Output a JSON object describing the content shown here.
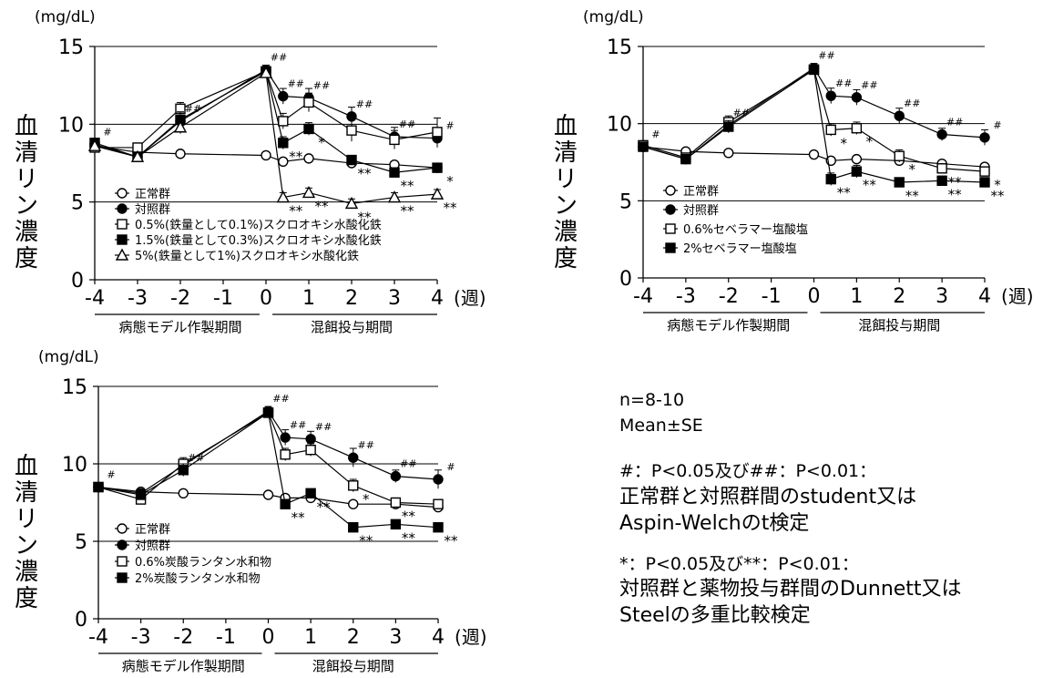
{
  "chart_data": [
    {
      "type": "line",
      "unit_label": "(mg/dL)",
      "ylabel": "血清リン濃度",
      "xunit": "(週)",
      "ylim": [
        0,
        15
      ],
      "yticks": [
        0,
        5,
        10,
        15
      ],
      "xticks": [
        -4,
        -3,
        -2,
        -1,
        0,
        1,
        2,
        3,
        4
      ],
      "period_labels": [
        "病態モデル作製期間",
        "混餌投与期間"
      ],
      "series": [
        {
          "name": "正常群",
          "marker": "open-circle",
          "x": [
            -4,
            -3,
            -2,
            0,
            0.4,
            1,
            2,
            3,
            4
          ],
          "y": [
            8.6,
            8.2,
            8.1,
            8.0,
            7.6,
            7.8,
            7.5,
            7.4,
            7.2
          ],
          "err": [
            0.2,
            0.2,
            0.15,
            0.15,
            0.2,
            0.2,
            0.2,
            0.2,
            0.2
          ]
        },
        {
          "name": "対照群",
          "marker": "filled-circle",
          "x": [
            -4,
            -3,
            -2,
            0,
            0.4,
            1,
            2,
            3,
            4
          ],
          "y": [
            8.7,
            7.9,
            10.2,
            13.5,
            11.8,
            11.7,
            10.5,
            9.2,
            9.1
          ],
          "err": [
            0.3,
            0.2,
            0.5,
            0.3,
            0.5,
            0.6,
            0.6,
            0.6,
            0.6
          ]
        },
        {
          "name": "0.5%(鉄量として0.1%)スクロオキシ水酸化鉄",
          "marker": "open-square",
          "x": [
            -4,
            -3,
            -2,
            0,
            0.4,
            1,
            2,
            3,
            4
          ],
          "y": [
            8.5,
            8.5,
            11.0,
            13.4,
            10.2,
            11.4,
            9.6,
            9.0,
            9.5
          ],
          "err": [
            0.2,
            0.2,
            0.4,
            0.3,
            0.5,
            0.6,
            0.7,
            0.6,
            0.9
          ]
        },
        {
          "name": "1.5%(鉄量として0.3%)スクロオキシ水酸化鉄",
          "marker": "filled-square",
          "x": [
            -4,
            -3,
            -2,
            0,
            0.4,
            1,
            2,
            3,
            4
          ],
          "y": [
            8.8,
            7.9,
            10.3,
            13.4,
            8.8,
            9.7,
            7.7,
            6.9,
            7.2
          ],
          "err": [
            0.3,
            0.2,
            0.5,
            0.3,
            0.4,
            0.4,
            0.3,
            0.3,
            0.3
          ]
        },
        {
          "name": "5%(鉄量として1%)スクロオキシ水酸化鉄",
          "marker": "open-triangle",
          "x": [
            -4,
            -3,
            -2,
            0,
            0.4,
            1,
            2,
            3,
            4
          ],
          "y": [
            8.6,
            7.9,
            9.8,
            13.3,
            5.3,
            5.6,
            4.9,
            5.3,
            5.5
          ],
          "err": [
            0.2,
            0.2,
            0.4,
            0.3,
            0.3,
            0.3,
            0.3,
            0.3,
            0.3
          ]
        }
      ],
      "annotations": [
        {
          "x": -4,
          "y": 8.7,
          "text": "#"
        },
        {
          "x": -2,
          "y": 10.2,
          "text": "##"
        },
        {
          "x": 0,
          "y": 13.5,
          "text": "##"
        },
        {
          "x": 0.4,
          "y": 11.8,
          "text": "##"
        },
        {
          "x": 1,
          "y": 11.7,
          "text": "##"
        },
        {
          "x": 2,
          "y": 10.5,
          "text": "##"
        },
        {
          "x": 3,
          "y": 9.2,
          "text": "##"
        },
        {
          "x": 4,
          "y": 9.1,
          "text": "#"
        },
        {
          "x": 0.4,
          "y": 8.8,
          "text": "**"
        },
        {
          "x": 1,
          "y": 9.7,
          "text": "*"
        },
        {
          "x": 2,
          "y": 7.7,
          "text": "**"
        },
        {
          "x": 3,
          "y": 6.9,
          "text": "**"
        },
        {
          "x": 4,
          "y": 7.2,
          "text": "*"
        },
        {
          "x": 0.4,
          "y": 5.3,
          "text": "**"
        },
        {
          "x": 1,
          "y": 5.6,
          "text": "**"
        },
        {
          "x": 2,
          "y": 4.9,
          "text": "**"
        },
        {
          "x": 3,
          "y": 5.3,
          "text": "**"
        },
        {
          "x": 4,
          "y": 5.5,
          "text": "**"
        }
      ]
    },
    {
      "type": "line",
      "unit_label": "(mg/dL)",
      "ylabel": "血清リン濃度",
      "xunit": "(週)",
      "ylim": [
        0,
        15
      ],
      "yticks": [
        0,
        5,
        10,
        15
      ],
      "xticks": [
        -4,
        -3,
        -2,
        -1,
        0,
        1,
        2,
        3,
        4
      ],
      "period_labels": [
        "病態モデル作製期間",
        "混餌投与期間"
      ],
      "series": [
        {
          "name": "正常群",
          "marker": "open-circle",
          "x": [
            -4,
            -3,
            -2,
            0,
            0.4,
            1,
            2,
            3,
            4
          ],
          "y": [
            8.5,
            8.2,
            8.1,
            8.0,
            7.6,
            7.7,
            7.6,
            7.4,
            7.2
          ],
          "err": [
            0.2,
            0.2,
            0.15,
            0.15,
            0.2,
            0.2,
            0.2,
            0.2,
            0.2
          ]
        },
        {
          "name": "対照群",
          "marker": "filled-circle",
          "x": [
            -4,
            -3,
            -2,
            0,
            0.4,
            1,
            2,
            3,
            4
          ],
          "y": [
            8.5,
            7.7,
            9.9,
            13.6,
            11.8,
            11.7,
            10.5,
            9.3,
            9.1
          ],
          "err": [
            0.2,
            0.2,
            0.4,
            0.3,
            0.5,
            0.5,
            0.5,
            0.4,
            0.5
          ]
        },
        {
          "name": "0.6%セベラマー塩酸塩",
          "marker": "open-square",
          "x": [
            -4,
            -3,
            -2,
            0,
            0.4,
            1,
            2,
            3,
            4
          ],
          "y": [
            8.6,
            7.8,
            10.1,
            13.5,
            9.6,
            9.7,
            7.9,
            7.1,
            6.9
          ],
          "err": [
            0.2,
            0.2,
            0.4,
            0.3,
            0.4,
            0.4,
            0.4,
            0.3,
            0.3
          ]
        },
        {
          "name": "2%セベラマー塩酸塩",
          "marker": "filled-square",
          "x": [
            -4,
            -3,
            -2,
            0,
            0.4,
            1,
            2,
            3,
            4
          ],
          "y": [
            8.5,
            7.7,
            9.8,
            13.5,
            6.4,
            6.9,
            6.2,
            6.3,
            6.2
          ],
          "err": [
            0.2,
            0.2,
            0.4,
            0.3,
            0.4,
            0.4,
            0.3,
            0.3,
            0.3
          ]
        }
      ],
      "annotations": [
        {
          "x": -4,
          "y": 8.5,
          "text": "#"
        },
        {
          "x": -2,
          "y": 9.9,
          "text": "##"
        },
        {
          "x": 0,
          "y": 13.6,
          "text": "##"
        },
        {
          "x": 0.4,
          "y": 11.8,
          "text": "##"
        },
        {
          "x": 1,
          "y": 11.7,
          "text": "##"
        },
        {
          "x": 2,
          "y": 10.5,
          "text": "##"
        },
        {
          "x": 3,
          "y": 9.3,
          "text": "##"
        },
        {
          "x": 4,
          "y": 9.1,
          "text": "#"
        },
        {
          "x": 0.4,
          "y": 9.6,
          "text": "*"
        },
        {
          "x": 1,
          "y": 9.7,
          "text": "*"
        },
        {
          "x": 2,
          "y": 7.9,
          "text": "*"
        },
        {
          "x": 3,
          "y": 7.1,
          "text": "**"
        },
        {
          "x": 4,
          "y": 6.9,
          "text": "*"
        },
        {
          "x": 0.4,
          "y": 6.4,
          "text": "**"
        },
        {
          "x": 1,
          "y": 6.9,
          "text": "**"
        },
        {
          "x": 2,
          "y": 6.2,
          "text": "**"
        },
        {
          "x": 3,
          "y": 6.3,
          "text": "**"
        },
        {
          "x": 4,
          "y": 6.2,
          "text": "**"
        }
      ]
    },
    {
      "type": "line",
      "unit_label": "(mg/dL)",
      "ylabel": "血清リン濃度",
      "xunit": "(週)",
      "ylim": [
        0,
        15
      ],
      "yticks": [
        0,
        5,
        10,
        15
      ],
      "xticks": [
        -4,
        -3,
        -2,
        -1,
        0,
        1,
        2,
        3,
        4
      ],
      "period_labels": [
        "病態モデル作製期間",
        "混餌投与期間"
      ],
      "series": [
        {
          "name": "正常群",
          "marker": "open-circle",
          "x": [
            -4,
            -3,
            -2,
            0,
            0.4,
            1,
            2,
            3,
            4
          ],
          "y": [
            8.5,
            8.2,
            8.1,
            8.0,
            7.8,
            7.8,
            7.4,
            7.4,
            7.2
          ],
          "err": [
            0.2,
            0.2,
            0.15,
            0.15,
            0.2,
            0.2,
            0.2,
            0.2,
            0.2
          ]
        },
        {
          "name": "対照群",
          "marker": "filled-circle",
          "x": [
            -4,
            -3,
            -2,
            0,
            0.4,
            1,
            2,
            3,
            4
          ],
          "y": [
            8.5,
            8.1,
            9.9,
            13.4,
            11.7,
            11.6,
            10.4,
            9.2,
            9.0
          ],
          "err": [
            0.2,
            0.2,
            0.4,
            0.3,
            0.5,
            0.5,
            0.6,
            0.4,
            0.6
          ]
        },
        {
          "name": "0.6%炭酸ランタン水和物",
          "marker": "open-square",
          "x": [
            -4,
            -3,
            -2,
            0,
            0.4,
            1,
            2,
            3,
            4
          ],
          "y": [
            8.5,
            7.7,
            10.0,
            13.3,
            10.6,
            10.9,
            8.6,
            7.5,
            7.4
          ],
          "err": [
            0.2,
            0.3,
            0.4,
            0.3,
            0.4,
            0.4,
            0.4,
            0.3,
            0.3
          ]
        },
        {
          "name": "2%炭酸ランタン水和物",
          "marker": "filled-square",
          "x": [
            -4,
            -3,
            -2,
            0,
            0.4,
            1,
            2,
            3,
            4
          ],
          "y": [
            8.5,
            8.0,
            9.6,
            13.3,
            7.4,
            8.1,
            5.9,
            6.1,
            5.9
          ],
          "err": [
            0.2,
            0.2,
            0.4,
            0.3,
            0.3,
            0.2,
            0.3,
            0.2,
            0.2
          ]
        }
      ],
      "annotations": [
        {
          "x": -4,
          "y": 8.5,
          "text": "#"
        },
        {
          "x": -2,
          "y": 9.6,
          "text": "##"
        },
        {
          "x": 0,
          "y": 13.4,
          "text": "##"
        },
        {
          "x": 0.4,
          "y": 11.7,
          "text": "##"
        },
        {
          "x": 1,
          "y": 11.6,
          "text": "##"
        },
        {
          "x": 2,
          "y": 10.4,
          "text": "##"
        },
        {
          "x": 3,
          "y": 9.2,
          "text": "##"
        },
        {
          "x": 4,
          "y": 9.0,
          "text": "#"
        },
        {
          "x": 2,
          "y": 8.6,
          "text": "*"
        },
        {
          "x": 3,
          "y": 7.5,
          "text": "**"
        },
        {
          "x": 0.4,
          "y": 7.4,
          "text": "**"
        },
        {
          "x": 1,
          "y": 8.1,
          "text": "**"
        },
        {
          "x": 2,
          "y": 5.9,
          "text": "**"
        },
        {
          "x": 3,
          "y": 6.1,
          "text": "**"
        },
        {
          "x": 4,
          "y": 5.9,
          "text": "**"
        }
      ]
    }
  ],
  "notes": {
    "n": "n=8-10",
    "mean": "Mean±SE",
    "hash_line": "#：P<0.05及び##：P<0.01：",
    "hash_desc1": "正常群と対照群間のstudent又は",
    "hash_desc2": "Aspin-Welchのt検定",
    "star_line": "*：P<0.05及び**：P<0.01：",
    "star_desc1": "対照群と薬物投与群間のDunnett又は",
    "star_desc2": "Steelの多重比較検定"
  }
}
